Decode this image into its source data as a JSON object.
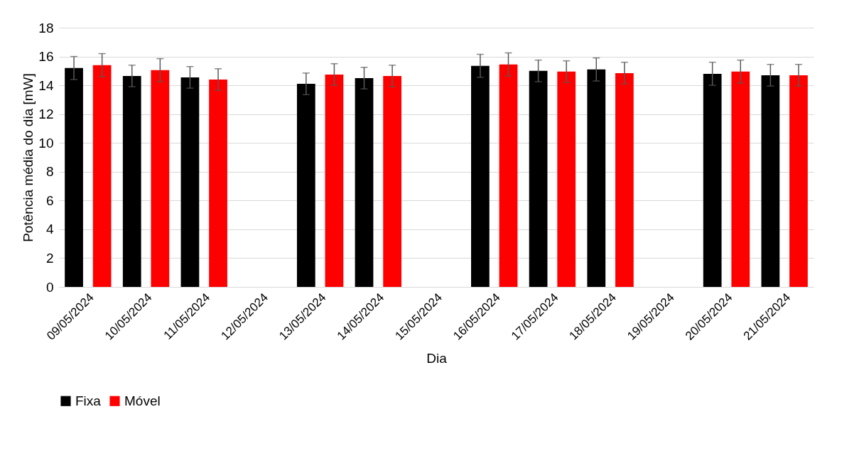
{
  "chart_data": {
    "type": "bar",
    "xlabel": "Dia",
    "ylabel": "Potência média do dia [mW]",
    "categories": [
      "09/05/2024",
      "10/05/2024",
      "11/05/2024",
      "12/05/2024",
      "13/05/2024",
      "14/05/2024",
      "15/05/2024",
      "16/05/2024",
      "17/05/2024",
      "18/05/2024",
      "19/05/2024",
      "20/05/2024",
      "21/05/2024"
    ],
    "series": [
      {
        "name": "Fixa",
        "color": "#000000",
        "values": [
          15.2,
          14.65,
          14.55,
          null,
          14.1,
          14.5,
          null,
          15.35,
          15.0,
          15.1,
          null,
          14.8,
          14.7
        ],
        "errors": [
          0.8,
          0.75,
          0.75,
          null,
          0.75,
          0.75,
          null,
          0.8,
          0.75,
          0.8,
          null,
          0.8,
          0.75
        ]
      },
      {
        "name": "Móvel",
        "color": "#ff0000",
        "values": [
          15.4,
          15.05,
          14.4,
          null,
          14.75,
          14.65,
          null,
          15.45,
          14.95,
          14.85,
          null,
          14.95,
          14.7
        ],
        "errors": [
          0.8,
          0.8,
          0.75,
          null,
          0.75,
          0.75,
          null,
          0.8,
          0.75,
          0.75,
          null,
          0.8,
          0.75
        ]
      }
    ],
    "ylim": [
      0,
      18
    ],
    "yticks": [
      0,
      2,
      4,
      6,
      8,
      10,
      12,
      14,
      16,
      18
    ],
    "grid": "y",
    "legend": "bottom"
  }
}
